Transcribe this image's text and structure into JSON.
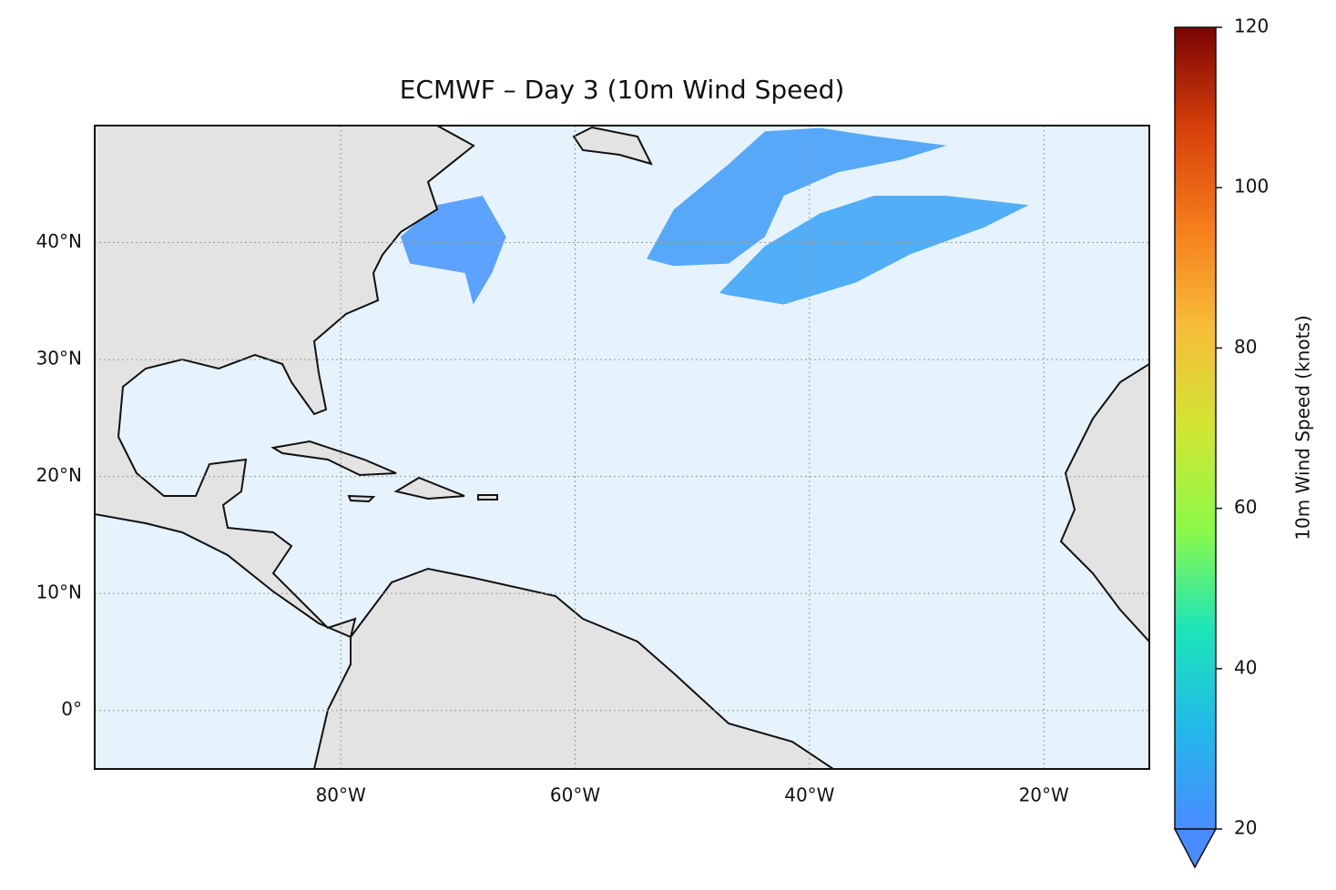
{
  "chart_data": {
    "type": "map",
    "title": "ECMWF – Day 3 (10m Wind Speed)",
    "xlim": [
      -101,
      -11
    ],
    "ylim": [
      -5,
      50
    ],
    "xticks": [
      {
        "value": -80,
        "label": "80°W"
      },
      {
        "value": -60,
        "label": "60°W"
      },
      {
        "value": -40,
        "label": "40°W"
      },
      {
        "value": -20,
        "label": "20°W"
      }
    ],
    "yticks": [
      {
        "value": 40,
        "label": "40°N"
      },
      {
        "value": 30,
        "label": "30°N"
      },
      {
        "value": 20,
        "label": "20°N"
      },
      {
        "value": 10,
        "label": "10°N"
      },
      {
        "value": 0,
        "label": "0°"
      }
    ],
    "grid": true,
    "colorbar_label": "10m Wind Speed (knots)",
    "clim": [
      20,
      120
    ],
    "cticks": [
      20,
      40,
      60,
      80,
      100,
      120
    ],
    "colormap": [
      "#4a8cff",
      "#23b8ea",
      "#1de5b8",
      "#8ef948",
      "#d1e533",
      "#f7bd3a",
      "#f67d1c",
      "#d6400a",
      "#7a0403"
    ],
    "wind_regions": [
      {
        "value": 24,
        "lon": [
          -53.9,
          -51.6,
          -46.9,
          -43.8,
          -39.1,
          -34.5,
          -28.3,
          -32.1,
          -37.6,
          -42.2,
          -43.8,
          -46.9,
          -51.6
        ],
        "lat": [
          38.6,
          42.8,
          46.7,
          49.5,
          49.8,
          49.1,
          48.3,
          47.1,
          46.0,
          44.0,
          40.5,
          38.2,
          38.0
        ]
      },
      {
        "value": 26,
        "lon": [
          -47.7,
          -43.8,
          -39.1,
          -34.5,
          -28.3,
          -21.3,
          -25.1,
          -31.4,
          -36.0,
          -42.2,
          -46.9
        ],
        "lat": [
          35.7,
          39.7,
          42.5,
          44.0,
          44.0,
          43.2,
          41.3,
          39.0,
          36.6,
          34.7,
          35.5
        ]
      },
      {
        "value": 22,
        "lon": [
          -74.9,
          -71.8,
          -67.9,
          -65.9,
          -67.1,
          -68.7,
          -69.4,
          -74.1
        ],
        "lat": [
          40.5,
          43.2,
          44.0,
          40.5,
          37.4,
          34.7,
          37.4,
          38.2
        ]
      }
    ]
  }
}
